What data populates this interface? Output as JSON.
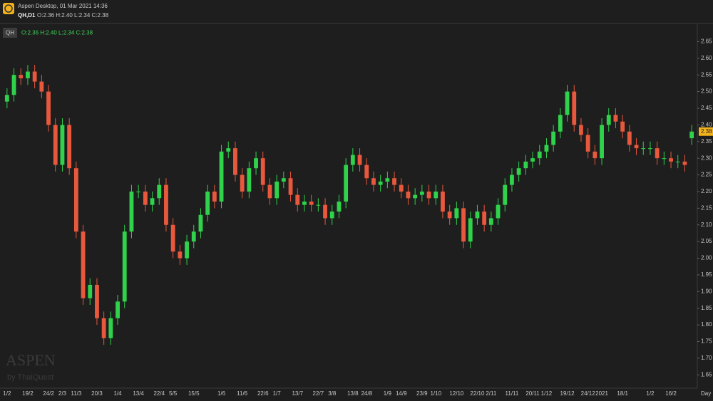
{
  "chart_data": {
    "type": "candlestick",
    "app_title": "Aspen Desktop, 01 Mar 2021 14:36",
    "symbol_label": "QH,D1",
    "ohlc_text": "O:2.36 H:2.40 L:2.34 C:2.38",
    "badge": "QH",
    "legend_ohlc_text": "O:2.36 H:2.40 L:2.34 C:2.38",
    "watermark": "ASPEN",
    "watermark_sub": "by ThaiQuest",
    "x_label": "Day",
    "up_color": "#2fd24a",
    "down_color": "#e8583c",
    "last_price": {
      "value": 2.38,
      "label": "2.38"
    },
    "categories": [
      "1/2",
      null,
      null,
      "19/2",
      null,
      null,
      "24/2",
      null,
      "2/3",
      null,
      "11/3",
      null,
      null,
      "20/3",
      null,
      null,
      "1/4",
      null,
      null,
      "13/4",
      null,
      null,
      "22/4",
      null,
      "5/5",
      null,
      null,
      "15/5",
      null,
      null,
      null,
      "1/6",
      null,
      null,
      "11/6",
      null,
      null,
      "22/6",
      null,
      "1/7",
      null,
      null,
      "13/7",
      null,
      null,
      "22/7",
      null,
      "3/8",
      null,
      null,
      "13/8",
      null,
      "24/8",
      null,
      null,
      "1/9",
      null,
      "14/9",
      null,
      null,
      "23/9",
      null,
      "1/10",
      null,
      null,
      "12/10",
      null,
      null,
      "22/10",
      null,
      "2/11",
      null,
      null,
      "11/11",
      null,
      null,
      "20/11",
      null,
      "1/12",
      null,
      null,
      "19/12",
      null,
      null,
      "24/12",
      null,
      "2021",
      null,
      null,
      "18/1",
      null,
      null,
      null,
      "1/2",
      null,
      null,
      "16/2",
      null,
      null,
      null
    ],
    "open": [
      2.47,
      2.49,
      2.55,
      2.54,
      2.56,
      2.53,
      2.5,
      2.4,
      2.28,
      2.4,
      2.27,
      2.08,
      1.88,
      1.92,
      1.82,
      1.76,
      1.82,
      1.87,
      2.08,
      2.2,
      2.2,
      2.16,
      2.18,
      2.22,
      2.1,
      2.02,
      2.0,
      2.05,
      2.08,
      2.13,
      2.2,
      2.17,
      2.32,
      2.33,
      2.25,
      2.2,
      2.27,
      2.3,
      2.22,
      2.18,
      2.23,
      2.24,
      2.19,
      2.16,
      2.17,
      2.16,
      2.16,
      2.12,
      2.14,
      2.17,
      2.28,
      2.31,
      2.28,
      2.24,
      2.22,
      2.23,
      2.24,
      2.22,
      2.2,
      2.18,
      2.19,
      2.2,
      2.18,
      2.2,
      2.14,
      2.12,
      2.15,
      2.05,
      2.12,
      2.14,
      2.1,
      2.12,
      2.16,
      2.22,
      2.25,
      2.27,
      2.29,
      2.3,
      2.32,
      2.34,
      2.38,
      2.43,
      2.5,
      2.4,
      2.37,
      2.32,
      2.3,
      2.4,
      2.43,
      2.41,
      2.38,
      2.34,
      2.33,
      2.33,
      2.33,
      2.3,
      2.3,
      2.29,
      2.29,
      2.36
    ],
    "high": [
      2.51,
      2.57,
      2.57,
      2.58,
      2.58,
      2.55,
      2.52,
      2.42,
      2.42,
      2.42,
      2.29,
      2.1,
      1.94,
      1.94,
      1.84,
      1.84,
      1.89,
      2.1,
      2.22,
      2.22,
      2.22,
      2.2,
      2.24,
      2.24,
      2.12,
      2.04,
      2.07,
      2.1,
      2.15,
      2.22,
      2.22,
      2.34,
      2.35,
      2.35,
      2.27,
      2.29,
      2.32,
      2.32,
      2.24,
      2.25,
      2.26,
      2.26,
      2.21,
      2.19,
      2.19,
      2.18,
      2.18,
      2.16,
      2.19,
      2.3,
      2.33,
      2.33,
      2.3,
      2.26,
      2.25,
      2.26,
      2.26,
      2.24,
      2.22,
      2.21,
      2.22,
      2.22,
      2.22,
      2.22,
      2.16,
      2.17,
      2.17,
      2.14,
      2.16,
      2.16,
      2.14,
      2.18,
      2.24,
      2.27,
      2.29,
      2.31,
      2.32,
      2.34,
      2.36,
      2.4,
      2.45,
      2.52,
      2.52,
      2.42,
      2.39,
      2.34,
      2.42,
      2.45,
      2.45,
      2.43,
      2.4,
      2.36,
      2.35,
      2.35,
      2.35,
      2.32,
      2.32,
      2.31,
      2.31,
      2.4
    ],
    "low": [
      2.45,
      2.47,
      2.52,
      2.52,
      2.51,
      2.48,
      2.38,
      2.26,
      2.26,
      2.25,
      2.06,
      1.86,
      1.86,
      1.8,
      1.74,
      1.74,
      1.8,
      1.85,
      2.06,
      2.18,
      2.14,
      2.14,
      2.16,
      2.08,
      2.0,
      1.98,
      1.98,
      2.03,
      2.06,
      2.11,
      2.15,
      2.15,
      2.3,
      2.23,
      2.18,
      2.18,
      2.25,
      2.2,
      2.16,
      2.16,
      2.21,
      2.17,
      2.14,
      2.14,
      2.14,
      2.14,
      2.1,
      2.1,
      2.12,
      2.15,
      2.26,
      2.26,
      2.22,
      2.2,
      2.2,
      2.21,
      2.2,
      2.18,
      2.16,
      2.16,
      2.17,
      2.16,
      2.16,
      2.12,
      2.1,
      2.1,
      2.03,
      2.03,
      2.1,
      2.08,
      2.08,
      2.1,
      2.14,
      2.2,
      2.23,
      2.25,
      2.27,
      2.28,
      2.3,
      2.32,
      2.36,
      2.41,
      2.38,
      2.35,
      2.3,
      2.28,
      2.28,
      2.38,
      2.39,
      2.36,
      2.32,
      2.31,
      2.31,
      2.31,
      2.28,
      2.28,
      2.27,
      2.27,
      2.26,
      2.34
    ],
    "close": [
      2.49,
      2.55,
      2.54,
      2.56,
      2.53,
      2.5,
      2.4,
      2.28,
      2.4,
      2.27,
      2.08,
      1.88,
      1.92,
      1.82,
      1.76,
      1.82,
      1.87,
      2.08,
      2.2,
      2.2,
      2.16,
      2.18,
      2.22,
      2.1,
      2.02,
      2.0,
      2.05,
      2.08,
      2.13,
      2.2,
      2.17,
      2.32,
      2.33,
      2.25,
      2.2,
      2.27,
      2.3,
      2.22,
      2.18,
      2.23,
      2.24,
      2.19,
      2.16,
      2.17,
      2.16,
      2.16,
      2.12,
      2.14,
      2.17,
      2.28,
      2.31,
      2.28,
      2.24,
      2.22,
      2.23,
      2.24,
      2.22,
      2.2,
      2.18,
      2.19,
      2.2,
      2.18,
      2.2,
      2.14,
      2.12,
      2.15,
      2.05,
      2.12,
      2.14,
      2.1,
      2.12,
      2.16,
      2.22,
      2.25,
      2.27,
      2.29,
      2.3,
      2.32,
      2.34,
      2.38,
      2.43,
      2.5,
      2.4,
      2.37,
      2.32,
      2.3,
      2.4,
      2.43,
      2.41,
      2.38,
      2.34,
      2.33,
      2.33,
      2.33,
      2.3,
      2.3,
      2.29,
      2.29,
      2.28,
      2.38
    ],
    "ylim": [
      1.61,
      2.7
    ],
    "yticks": [
      1.65,
      {
        "value": 1.7,
        "label": "1.70"
      },
      1.75,
      {
        "value": 1.8,
        "label": "1.80"
      },
      1.85,
      {
        "value": 1.9,
        "label": "1.90"
      },
      1.95,
      {
        "value": 2.0,
        "label": "2.00"
      },
      2.05,
      {
        "value": 2.1,
        "label": "2.10"
      },
      2.15,
      {
        "value": 2.2,
        "label": "2.20"
      },
      2.25,
      {
        "value": 2.3,
        "label": "2.30"
      },
      2.35,
      {
        "value": 2.4,
        "label": "2.40"
      },
      2.45,
      {
        "value": 2.5,
        "label": "2.50"
      },
      2.55,
      {
        "value": 2.6,
        "label": "2.60"
      },
      2.65
    ]
  }
}
